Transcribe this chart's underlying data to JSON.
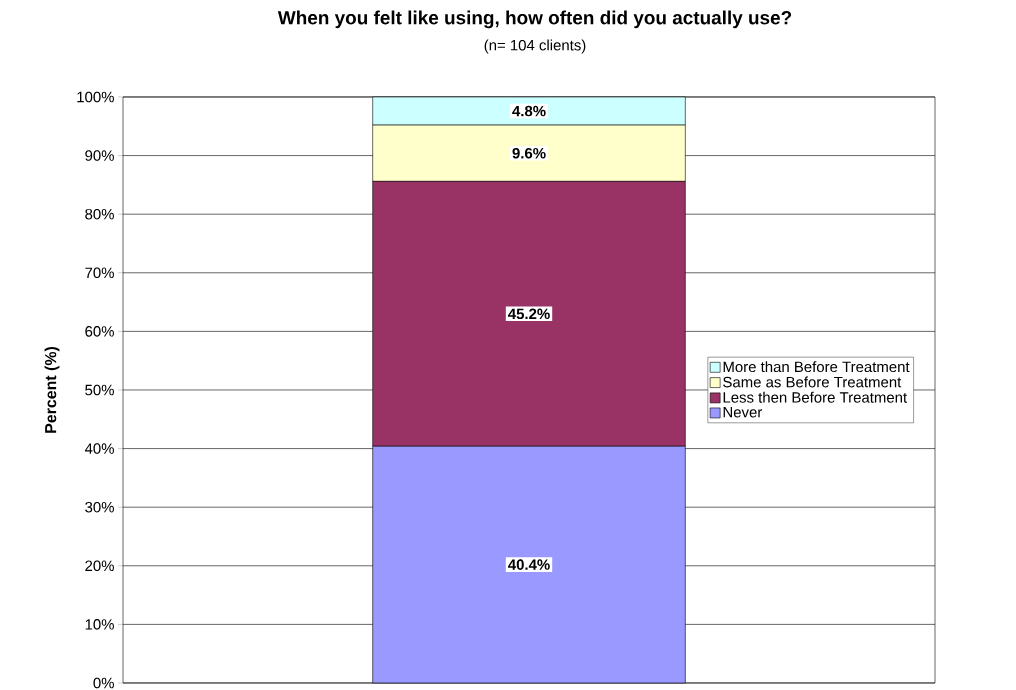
{
  "chart_data": {
    "type": "bar",
    "stacked": true,
    "title": "When you felt like using, how often did you actually use?",
    "subtitle": "(n= 104 clients)",
    "ylabel": "Percent (%)",
    "categories": [
      null
    ],
    "series": [
      {
        "name": "Never",
        "color": "#9999ff",
        "values": [
          40.4
        ],
        "value_labels": [
          "40.4%"
        ]
      },
      {
        "name": "Less then Before Treatment",
        "color": "#993366",
        "values": [
          45.2
        ],
        "value_labels": [
          "45.2%"
        ]
      },
      {
        "name": "Same as Before Treatment",
        "color": "#ffffcc",
        "values": [
          9.6
        ],
        "value_labels": [
          "9.6%"
        ]
      },
      {
        "name": "More than Before Treatment",
        "color": "#ccffff",
        "values": [
          4.8
        ],
        "value_labels": [
          "4.8%"
        ]
      }
    ],
    "ylim": [
      0,
      100
    ],
    "yticks": [
      {
        "value": 0,
        "label": "0%"
      },
      {
        "value": 10,
        "label": "10%"
      },
      {
        "value": 20,
        "label": "20%"
      },
      {
        "value": 30,
        "label": "30%"
      },
      {
        "value": 40,
        "label": "40%"
      },
      {
        "value": 50,
        "label": "50%"
      },
      {
        "value": 60,
        "label": "60%"
      },
      {
        "value": 70,
        "label": "70%"
      },
      {
        "value": 80,
        "label": "80%"
      },
      {
        "value": 90,
        "label": "90%"
      },
      {
        "value": 100,
        "label": "100%"
      }
    ],
    "grid": "y",
    "legend": "right",
    "tick_labels": "y"
  }
}
